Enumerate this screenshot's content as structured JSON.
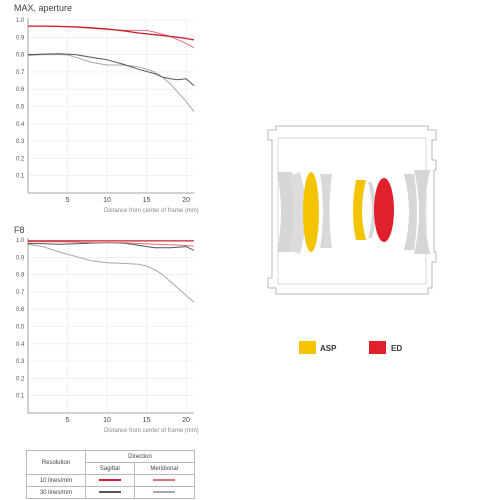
{
  "colors": {
    "sag10": "#cc1f2f",
    "mer10": "#e07080",
    "sag30": "#555555",
    "mer30": "#a8a8a8",
    "asp": "#f5c400",
    "ed": "#e0202a",
    "lens_gray": "#d6d6d6",
    "grid": "#e8e8e8",
    "axis": "#888888"
  },
  "chart_data": [
    {
      "type": "line",
      "title": "MAX, aperture",
      "xlabel": "Distance from center of frame (mm)",
      "ylabel": "",
      "xlim": [
        0,
        21
      ],
      "ylim": [
        0,
        1.0
      ],
      "xticks": [
        5,
        10,
        15,
        20
      ],
      "yticks": [
        "0.1",
        "0.2",
        "0.3",
        "0.4",
        "0.5",
        "0.6",
        "0.7",
        "0.8",
        "0.9",
        "1.0"
      ],
      "series": [
        {
          "key": "sag10",
          "x": [
            0,
            2,
            4,
            6,
            8,
            10,
            12,
            14,
            16,
            18,
            19,
            20,
            21
          ],
          "y": [
            0.965,
            0.965,
            0.963,
            0.96,
            0.955,
            0.948,
            0.938,
            0.925,
            0.915,
            0.905,
            0.9,
            0.893,
            0.885
          ]
        },
        {
          "key": "mer10",
          "x": [
            0,
            2,
            4,
            6,
            8,
            10,
            12,
            14,
            15,
            16,
            18,
            19,
            20,
            21
          ],
          "y": [
            0.965,
            0.965,
            0.962,
            0.958,
            0.952,
            0.945,
            0.94,
            0.94,
            0.94,
            0.93,
            0.905,
            0.885,
            0.865,
            0.84
          ]
        },
        {
          "key": "sag30",
          "x": [
            0,
            2,
            4,
            6,
            8,
            10,
            12,
            14,
            16,
            17,
            18,
            19,
            20,
            21
          ],
          "y": [
            0.8,
            0.803,
            0.805,
            0.8,
            0.785,
            0.77,
            0.745,
            0.715,
            0.69,
            0.67,
            0.66,
            0.655,
            0.66,
            0.62
          ]
        },
        {
          "key": "mer30",
          "x": [
            0,
            2,
            4,
            5,
            6,
            8,
            10,
            12,
            14,
            16,
            17,
            18,
            19,
            20,
            21
          ],
          "y": [
            0.795,
            0.8,
            0.8,
            0.798,
            0.785,
            0.755,
            0.74,
            0.74,
            0.73,
            0.7,
            0.67,
            0.63,
            0.58,
            0.53,
            0.47
          ]
        }
      ]
    },
    {
      "type": "line",
      "title": "F8",
      "xlabel": "Distance from center of frame (mm)",
      "ylabel": "",
      "xlim": [
        0,
        21
      ],
      "ylim": [
        0,
        1.0
      ],
      "xticks": [
        5,
        10,
        15,
        20
      ],
      "yticks": [
        "0.1",
        "0.2",
        "0.3",
        "0.4",
        "0.5",
        "0.6",
        "0.7",
        "0.8",
        "0.9",
        "1.0"
      ],
      "series": [
        {
          "key": "sag10",
          "x": [
            0,
            21
          ],
          "y": [
            0.995,
            0.995
          ]
        },
        {
          "key": "mer10",
          "x": [
            0,
            2,
            4,
            6,
            8,
            10,
            12,
            14,
            16,
            18,
            20,
            21
          ],
          "y": [
            0.99,
            0.99,
            0.99,
            0.988,
            0.985,
            0.985,
            0.985,
            0.98,
            0.975,
            0.972,
            0.968,
            0.965
          ]
        },
        {
          "key": "sag30",
          "x": [
            0,
            2,
            4,
            6,
            8,
            10,
            12,
            14,
            16,
            18,
            20,
            21
          ],
          "y": [
            0.98,
            0.978,
            0.975,
            0.978,
            0.982,
            0.985,
            0.982,
            0.97,
            0.955,
            0.955,
            0.962,
            0.94
          ]
        },
        {
          "key": "mer30",
          "x": [
            0,
            2,
            4,
            6,
            8,
            10,
            12,
            14,
            15,
            16,
            17,
            18,
            19,
            20,
            21
          ],
          "y": [
            0.975,
            0.96,
            0.93,
            0.905,
            0.88,
            0.868,
            0.865,
            0.86,
            0.85,
            0.83,
            0.8,
            0.76,
            0.72,
            0.68,
            0.64
          ]
        }
      ]
    }
  ],
  "legend_table": {
    "resolution_header": "Resolution",
    "direction_header": "Direction",
    "col_sagittal": "Sagittal",
    "col_meridional": "Meridional",
    "row1_label": "10 lines/mm",
    "row2_label": "30 lines/mm"
  },
  "lens_legend": [
    {
      "label": "ASP",
      "color_key": "asp"
    },
    {
      "label": "ED",
      "color_key": "ed"
    }
  ]
}
